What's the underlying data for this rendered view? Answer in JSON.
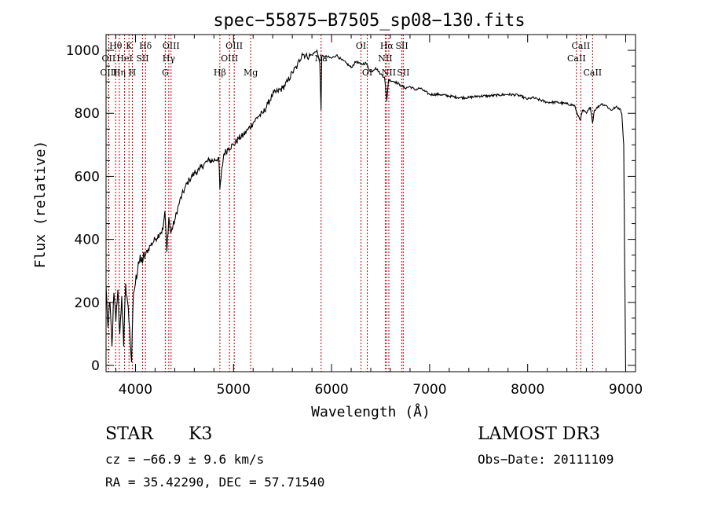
{
  "chart_data": {
    "type": "line",
    "title": "spec−55875−B7505_sp08−130.fits",
    "xlabel": "Wavelength (Å)",
    "ylabel": "Flux (relative)",
    "xlim": [
      3700,
      9100
    ],
    "ylim": [
      -20,
      1050
    ],
    "xticks": [
      4000,
      5000,
      6000,
      7000,
      8000,
      9000
    ],
    "yticks": [
      0,
      200,
      400,
      600,
      800,
      1000
    ],
    "series": [
      {
        "name": "Flux",
        "x": [
          3700,
          3720,
          3740,
          3760,
          3780,
          3800,
          3820,
          3840,
          3860,
          3880,
          3900,
          3920,
          3940,
          3960,
          3980,
          4000,
          4030,
          4060,
          4100,
          4150,
          4200,
          4250,
          4280,
          4300,
          4320,
          4340,
          4360,
          4400,
          4450,
          4500,
          4550,
          4600,
          4650,
          4700,
          4750,
          4800,
          4850,
          4861,
          4900,
          4950,
          5000,
          5050,
          5100,
          5150,
          5200,
          5250,
          5300,
          5350,
          5400,
          5450,
          5500,
          5550,
          5600,
          5650,
          5700,
          5750,
          5800,
          5850,
          5880,
          5893,
          5900,
          5950,
          6000,
          6050,
          6100,
          6150,
          6200,
          6250,
          6300,
          6350,
          6400,
          6450,
          6500,
          6540,
          6563,
          6580,
          6600,
          6650,
          6700,
          6750,
          6800,
          6850,
          6900,
          6950,
          7000,
          7100,
          7200,
          7300,
          7400,
          7500,
          7600,
          7700,
          7800,
          7900,
          8000,
          8050,
          8100,
          8200,
          8300,
          8400,
          8480,
          8500,
          8540,
          8560,
          8600,
          8640,
          8662,
          8680,
          8700,
          8750,
          8800,
          8850,
          8900,
          8940,
          8960,
          8980,
          8990,
          9000
        ],
        "y": [
          250,
          120,
          200,
          60,
          230,
          140,
          240,
          100,
          220,
          60,
          260,
          200,
          120,
          10,
          230,
          260,
          330,
          330,
          350,
          380,
          400,
          420,
          430,
          490,
          360,
          470,
          420,
          460,
          520,
          560,
          590,
          610,
          620,
          640,
          650,
          650,
          660,
          560,
          670,
          690,
          700,
          720,
          730,
          750,
          770,
          790,
          800,
          830,
          860,
          870,
          880,
          900,
          930,
          950,
          990,
          980,
          985,
          1000,
          960,
          810,
          980,
          980,
          975,
          985,
          970,
          960,
          945,
          965,
          955,
          960,
          930,
          945,
          925,
          915,
          840,
          905,
          905,
          900,
          890,
          880,
          885,
          875,
          880,
          870,
          860,
          860,
          855,
          850,
          850,
          855,
          855,
          858,
          860,
          858,
          845,
          850,
          845,
          835,
          835,
          830,
          825,
          800,
          780,
          810,
          800,
          820,
          770,
          810,
          815,
          830,
          825,
          810,
          820,
          815,
          800,
          700,
          300,
          -20
        ]
      }
    ],
    "lines": [
      {
        "name": "Hθ",
        "wl": 3798,
        "row": 1
      },
      {
        "name": "OII",
        "wl": 3727,
        "row": 2
      },
      {
        "name": "OIII",
        "wl": 3727,
        "row": 3
      },
      {
        "name": "Hη",
        "wl": 3835,
        "row": 3
      },
      {
        "name": "K",
        "wl": 3934,
        "row": 1
      },
      {
        "name": "HeI",
        "wl": 3889,
        "row": 2
      },
      {
        "name": "H",
        "wl": 3968,
        "row": 3
      },
      {
        "name": "SII",
        "wl": 4072,
        "row": 2
      },
      {
        "name": "Hδ",
        "wl": 4102,
        "row": 1
      },
      {
        "name": "OIII",
        "wl": 4363,
        "row": 1
      },
      {
        "name": "Hγ",
        "wl": 4340,
        "row": 2
      },
      {
        "name": "G",
        "wl": 4304,
        "row": 3
      },
      {
        "name": "OIII",
        "wl": 5007,
        "row": 1
      },
      {
        "name": "OIII",
        "wl": 4959,
        "row": 2
      },
      {
        "name": "Hβ",
        "wl": 4861,
        "row": 3
      },
      {
        "name": "Mg",
        "wl": 5175,
        "row": 3
      },
      {
        "name": "Na",
        "wl": 5893,
        "row": 2
      },
      {
        "name": "OI",
        "wl": 6300,
        "row": 1
      },
      {
        "name": "OI",
        "wl": 6364,
        "row": 3
      },
      {
        "name": "Hα",
        "wl": 6563,
        "row": 1
      },
      {
        "name": "NII",
        "wl": 6548,
        "row": 2
      },
      {
        "name": "NII",
        "wl": 6584,
        "row": 3
      },
      {
        "name": "SII",
        "wl": 6717,
        "row": 1
      },
      {
        "name": "SII",
        "wl": 6731,
        "row": 3
      },
      {
        "name": "CaII",
        "wl": 8542,
        "row": 1
      },
      {
        "name": "CaII",
        "wl": 8498,
        "row": 2
      },
      {
        "name": "CaII",
        "wl": 8662,
        "row": 3
      }
    ],
    "line_color": "#c00000",
    "grid": false
  },
  "info": {
    "class": "STAR",
    "subclass": "K3",
    "survey": "LAMOST DR3",
    "cz_label": "cz = ",
    "cz": "−66.9 ± 9.6 km/s",
    "obs_date": "Obs−Date: 20111109",
    "ra_dec": "RA =  35.42290, DEC =  57.71540"
  }
}
